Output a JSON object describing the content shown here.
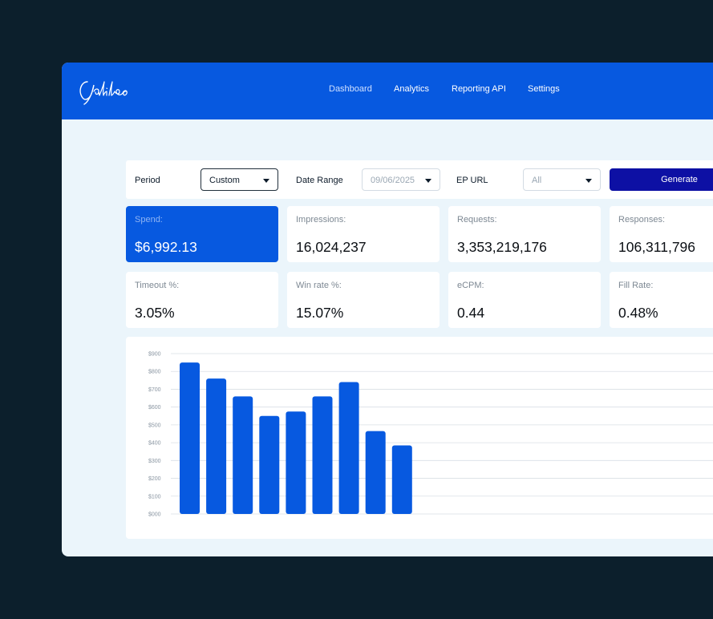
{
  "app": {
    "logo_text": "Galileo"
  },
  "nav": [
    {
      "label": "Dashboard",
      "active": true
    },
    {
      "label": "Analytics",
      "active": false
    },
    {
      "label": "Reporting API",
      "active": false
    },
    {
      "label": "Settings",
      "active": false
    }
  ],
  "filters": {
    "period_label": "Period",
    "period_value": "Custom",
    "date_range_label": "Date Range",
    "date_value": "09/06/2025",
    "ep_url_label": "EP URL",
    "ep_url_value": "All",
    "generate_label": "Generate"
  },
  "metrics": [
    {
      "label": "Spend:",
      "value": "$6,992.13",
      "highlight": true
    },
    {
      "label": "Impressions:",
      "value": "16,024,237"
    },
    {
      "label": "Requests:",
      "value": "3,353,219,176"
    },
    {
      "label": "Responses:",
      "value": "106,311,796"
    },
    {
      "label": "Timeout %:",
      "value": "3.05%"
    },
    {
      "label": "Win rate %:",
      "value": "15.07%"
    },
    {
      "label": "eCPM:",
      "value": "0.44"
    },
    {
      "label": "Fill Rate:",
      "value": "0.48%"
    }
  ],
  "colors": {
    "brand": "#0759e0",
    "button": "#0d10a4",
    "bar": "#0759e0"
  },
  "chart_data": {
    "type": "bar",
    "y_tick_labels": [
      "$000",
      "$100",
      "$200",
      "$300",
      "$400",
      "$500",
      "$600",
      "$700",
      "$800",
      "$900"
    ],
    "values": [
      850,
      760,
      660,
      550,
      575,
      660,
      740,
      465,
      385
    ],
    "ylim": [
      0,
      900
    ],
    "grid": true
  }
}
